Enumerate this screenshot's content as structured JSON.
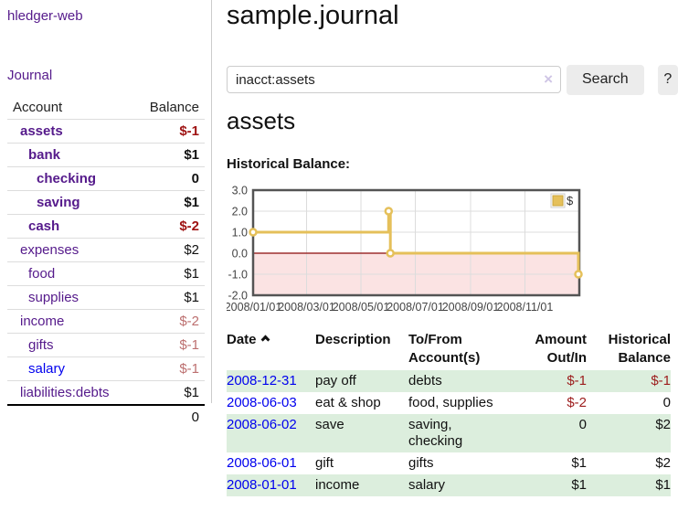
{
  "sidebar": {
    "brand": "hledger-web",
    "journal_link": "Journal",
    "headers": {
      "account": "Account",
      "balance": "Balance"
    },
    "accounts": [
      {
        "name": "assets",
        "balance": "$-1"
      },
      {
        "name": "bank",
        "balance": "$1"
      },
      {
        "name": "checking",
        "balance": "0"
      },
      {
        "name": "saving",
        "balance": "$1"
      },
      {
        "name": "cash",
        "balance": "$-2"
      },
      {
        "name": "expenses",
        "balance": "$2"
      },
      {
        "name": "food",
        "balance": "$1"
      },
      {
        "name": "supplies",
        "balance": "$1"
      },
      {
        "name": "income",
        "balance": "$-2"
      },
      {
        "name": "gifts",
        "balance": "$-1"
      },
      {
        "name": "salary",
        "balance": "$-1"
      },
      {
        "name": "liabilities:debts",
        "balance": "$1"
      }
    ],
    "total": "0"
  },
  "main": {
    "title": "sample.journal",
    "search": {
      "value": "inacct:assets",
      "clear_icon": "×",
      "search_button": "Search",
      "help_button": "?"
    },
    "account_heading": "assets",
    "chart_label": "Historical Balance:"
  },
  "register": {
    "headers": {
      "date": "Date",
      "description": "Description",
      "accounts": "To/From Account(s)",
      "amount": "Amount Out/In",
      "balance": "Historical Balance"
    },
    "rows": [
      {
        "date": "2008-12-31",
        "description": "pay off",
        "accounts": "debts",
        "amount": "$-1",
        "balance": "$-1"
      },
      {
        "date": "2008-06-03",
        "description": "eat & shop",
        "accounts": "food, supplies",
        "amount": "$-2",
        "balance": "0"
      },
      {
        "date": "2008-06-02",
        "description": "save",
        "accounts": "saving, checking",
        "amount": "0",
        "balance": "$2"
      },
      {
        "date": "2008-06-01",
        "description": "gift",
        "accounts": "gifts",
        "amount": "$1",
        "balance": "$2"
      },
      {
        "date": "2008-01-01",
        "description": "income",
        "accounts": "salary",
        "amount": "$1",
        "balance": "$1"
      }
    ]
  },
  "chart_data": {
    "type": "line",
    "title": "Historical Balance:",
    "step": true,
    "series": [
      {
        "name": "$",
        "color": "#e5c05a",
        "points": [
          [
            "2008-01-01",
            1
          ],
          [
            "2008-06-01",
            2
          ],
          [
            "2008-06-03",
            0
          ],
          [
            "2008-12-31",
            -1
          ]
        ]
      }
    ],
    "xdomain": [
      "2008-01-01",
      "2009-01-01"
    ],
    "ylim": [
      -2,
      3
    ],
    "yticks": [
      3.0,
      2.0,
      1.0,
      0.0,
      -1.0,
      -2.0
    ],
    "xticks": [
      "2008/01/01",
      "2008/03/01",
      "2008/05/01",
      "2008/07/01",
      "2008/09/01",
      "2008/11/01"
    ],
    "legend_position": "top-right",
    "grid": true,
    "negative_fill": "#fbe3e3",
    "zero_line_color": "#9d2f2f"
  },
  "colors": {
    "link_purple": "#551a8b",
    "link_blue": "#0000ee",
    "negative_strong": "#9e1212",
    "negative_soft": "#bc6f6f",
    "row_stripe_green": "#dceedd",
    "chart_line_gold": "#e5c05a",
    "chart_negative_pink": "#fbe3e3",
    "chart_zero_line": "#9d2f2f"
  }
}
